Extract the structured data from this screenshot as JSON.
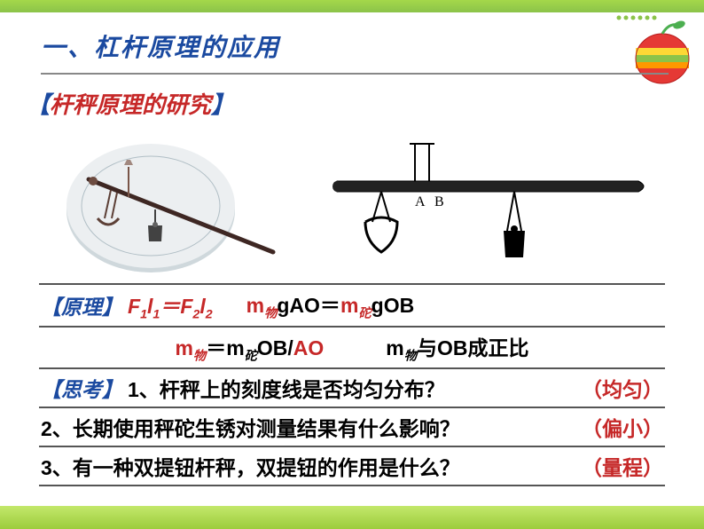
{
  "title": "一、杠杆原理的应用",
  "subheading": {
    "open": "【",
    "text": "杆秤原理的研究",
    "close": "】"
  },
  "schematic": {
    "labelA": "A",
    "labelB": "B",
    "beam_color": "#1a1a1a",
    "bg": "#ffffff"
  },
  "principle": {
    "label": "【原理】",
    "eq1_html": "F<span class='sub'>1</span>l<span class='sub'>1</span>＝F<span class='sub'>2</span>l<span class='sub'>2</span>",
    "eq2_html": "m<span class='sub-cn'>物</span>gAO＝m<span class='sub-cn'>砣</span>gOB",
    "eq3_left": "m<span class='sub-cn'>物</span>＝m<span class='sub-cn'>砣</span>OB/",
    "eq3_right": "AO",
    "eq4_html": "m<span class='sub-cn'>物</span>与OB成正比"
  },
  "think": {
    "label": "【思考】",
    "q1": "1、杆秤上的刻度线是否均匀分布？",
    "a1": "（均匀）",
    "q2": "2、长期使用秤砣生锈对测量结果有什么影响？",
    "a2": "（偏小）",
    "q3": "3、有一种双提钮杆秤，双提钮的作用是什么？",
    "a3": "（量程）"
  },
  "colors": {
    "title": "#1b4aa0",
    "red": "#c62828",
    "underline": "#555555",
    "green_top": "#a4d84a",
    "green_bottom": "#9ccc3c"
  }
}
